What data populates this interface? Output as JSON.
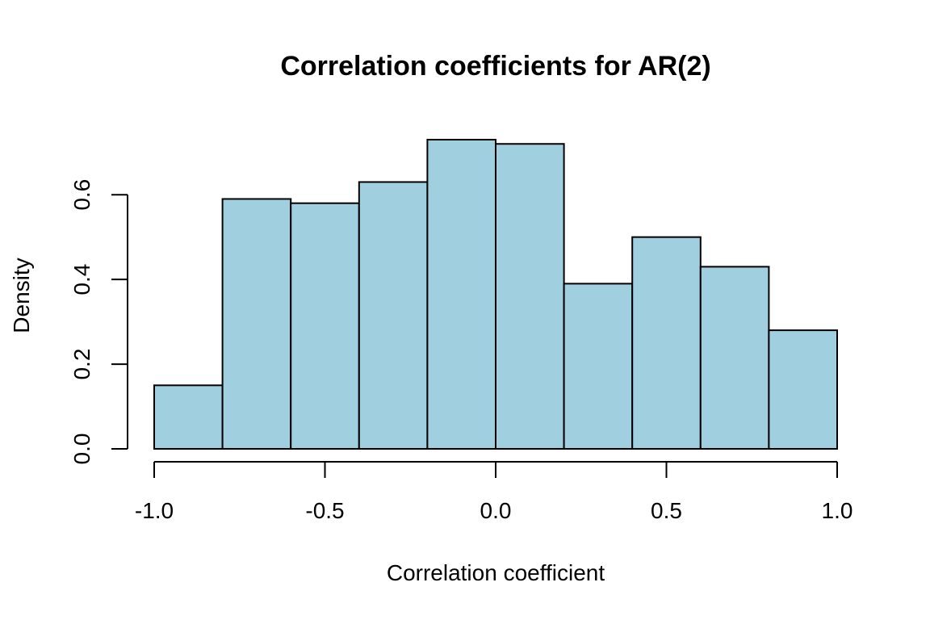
{
  "chart_data": {
    "type": "bar",
    "title": "Correlation coefficients for AR(2)",
    "xlabel": "Correlation coefficient",
    "ylabel": "Density",
    "bin_edges": [
      -1.0,
      -0.8,
      -0.6,
      -0.4,
      -0.2,
      0.0,
      0.2,
      0.4,
      0.6,
      0.8,
      1.0
    ],
    "values": [
      0.15,
      0.59,
      0.58,
      0.63,
      0.73,
      0.72,
      0.39,
      0.5,
      0.43,
      0.28
    ],
    "xlim": [
      -1.0,
      1.0
    ],
    "ylim": [
      0,
      0.73
    ],
    "xticks": [
      -1.0,
      -0.5,
      0.0,
      0.5,
      1.0
    ],
    "xtick_labels": [
      "-1.0",
      "-0.5",
      "0.0",
      "0.5",
      "1.0"
    ],
    "yticks": [
      0,
      0.2,
      0.4,
      0.6
    ],
    "ytick_labels": [
      "0.0",
      "0.2",
      "0.4",
      "0.6"
    ],
    "bar_color": "#a0cfe0",
    "grid": false,
    "legend": "none"
  }
}
